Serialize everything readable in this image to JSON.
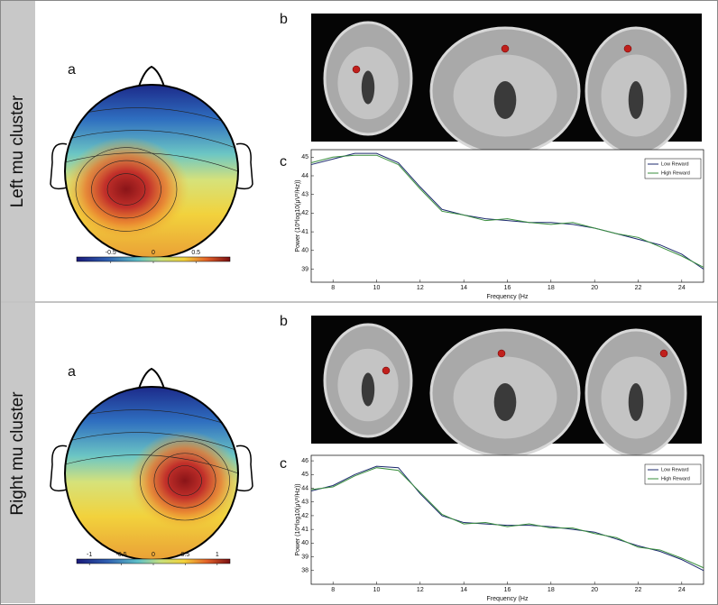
{
  "rows": [
    {
      "label": "Left mu cluster",
      "letters": [
        "a",
        "b",
        "c"
      ],
      "colorbar": {
        "lim": [
          -0.9,
          0.9
        ],
        "ticks": [
          -0.5,
          0,
          0.5
        ]
      },
      "chart": {
        "type": "line",
        "xlabel": "Frequency (Hz",
        "ylabel": "Power (10*log10(μV²/Hz))",
        "xlim": [
          7,
          25
        ],
        "xticks": [
          8,
          10,
          12,
          14,
          16,
          18,
          20,
          22,
          24
        ],
        "ylim": [
          38.3,
          45.4
        ],
        "yticks": [
          39,
          40,
          41,
          42,
          43,
          44,
          45
        ],
        "x": [
          7,
          8,
          9,
          10,
          11,
          12,
          13,
          14,
          15,
          16,
          17,
          18,
          19,
          20,
          21,
          22,
          23,
          24,
          25
        ],
        "series": [
          {
            "name": "Low Reward",
            "color": "#1c2a6e",
            "values": [
              44.6,
              44.9,
              45.2,
              45.2,
              44.7,
              43.4,
              42.2,
              41.9,
              41.7,
              41.6,
              41.5,
              41.5,
              41.4,
              41.2,
              40.9,
              40.6,
              40.3,
              39.8,
              39.0
            ]
          },
          {
            "name": "High Reward",
            "color": "#3a8f3e",
            "values": [
              44.7,
              45.0,
              45.1,
              45.1,
              44.6,
              43.3,
              42.1,
              41.9,
              41.6,
              41.7,
              41.5,
              41.4,
              41.5,
              41.2,
              40.9,
              40.7,
              40.2,
              39.7,
              39.1
            ]
          }
        ]
      }
    },
    {
      "label": "Right mu cluster",
      "letters": [
        "a",
        "b",
        "c"
      ],
      "colorbar": {
        "lim": [
          -1.2,
          1.2
        ],
        "ticks": [
          -1,
          -0.5,
          0,
          0.5,
          1
        ]
      },
      "chart": {
        "type": "line",
        "xlabel": "Frequency (Hz",
        "ylabel": "Power (10*log10(μV²/Hz))",
        "xlim": [
          7,
          25
        ],
        "xticks": [
          8,
          10,
          12,
          14,
          16,
          18,
          20,
          22,
          24
        ],
        "ylim": [
          37.0,
          46.4
        ],
        "yticks": [
          38,
          39,
          40,
          41,
          42,
          43,
          44,
          45,
          46
        ],
        "x": [
          7,
          8,
          9,
          10,
          11,
          12,
          13,
          14,
          15,
          16,
          17,
          18,
          19,
          20,
          21,
          22,
          23,
          24,
          25
        ],
        "series": [
          {
            "name": "Low Reward",
            "color": "#1c2a6e",
            "values": [
              43.8,
              44.2,
              45.0,
              45.6,
              45.5,
              43.6,
              42.0,
              41.5,
              41.4,
              41.3,
              41.3,
              41.2,
              41.0,
              40.8,
              40.3,
              39.8,
              39.4,
              38.8,
              38.0
            ]
          },
          {
            "name": "High Reward",
            "color": "#3a8f3e",
            "values": [
              43.9,
              44.1,
              44.9,
              45.5,
              45.3,
              43.7,
              42.1,
              41.4,
              41.5,
              41.2,
              41.4,
              41.1,
              41.1,
              40.7,
              40.4,
              39.7,
              39.5,
              38.9,
              38.2
            ]
          }
        ]
      }
    }
  ]
}
